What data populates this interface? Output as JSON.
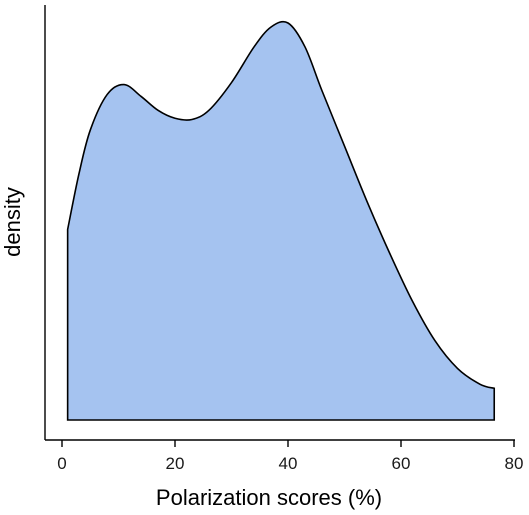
{
  "chart_data": {
    "type": "area",
    "xlabel": "Polarization scores (%)",
    "ylabel": "density",
    "xlim": [
      0,
      80
    ],
    "xticks": [
      0,
      20,
      40,
      60,
      80
    ],
    "xtick_labels": [
      "0",
      "20",
      "40",
      "60",
      "80"
    ],
    "y_ticks_shown": false,
    "grid": false,
    "legend": "none",
    "fill_color": "#a5c3f0",
    "line_color": "#000000",
    "points": [
      {
        "x": 1,
        "y": 0.48
      },
      {
        "x": 3,
        "y": 0.62
      },
      {
        "x": 5,
        "y": 0.73
      },
      {
        "x": 8,
        "y": 0.82
      },
      {
        "x": 11,
        "y": 0.845
      },
      {
        "x": 14,
        "y": 0.815
      },
      {
        "x": 17,
        "y": 0.78
      },
      {
        "x": 20,
        "y": 0.76
      },
      {
        "x": 23,
        "y": 0.757
      },
      {
        "x": 26,
        "y": 0.78
      },
      {
        "x": 30,
        "y": 0.85
      },
      {
        "x": 34,
        "y": 0.94
      },
      {
        "x": 37,
        "y": 0.99
      },
      {
        "x": 40,
        "y": 1.0
      },
      {
        "x": 43,
        "y": 0.94
      },
      {
        "x": 46,
        "y": 0.83
      },
      {
        "x": 50,
        "y": 0.69
      },
      {
        "x": 54,
        "y": 0.55
      },
      {
        "x": 58,
        "y": 0.42
      },
      {
        "x": 62,
        "y": 0.3
      },
      {
        "x": 66,
        "y": 0.2
      },
      {
        "x": 70,
        "y": 0.13
      },
      {
        "x": 74,
        "y": 0.09
      },
      {
        "x": 76.5,
        "y": 0.08
      }
    ]
  }
}
